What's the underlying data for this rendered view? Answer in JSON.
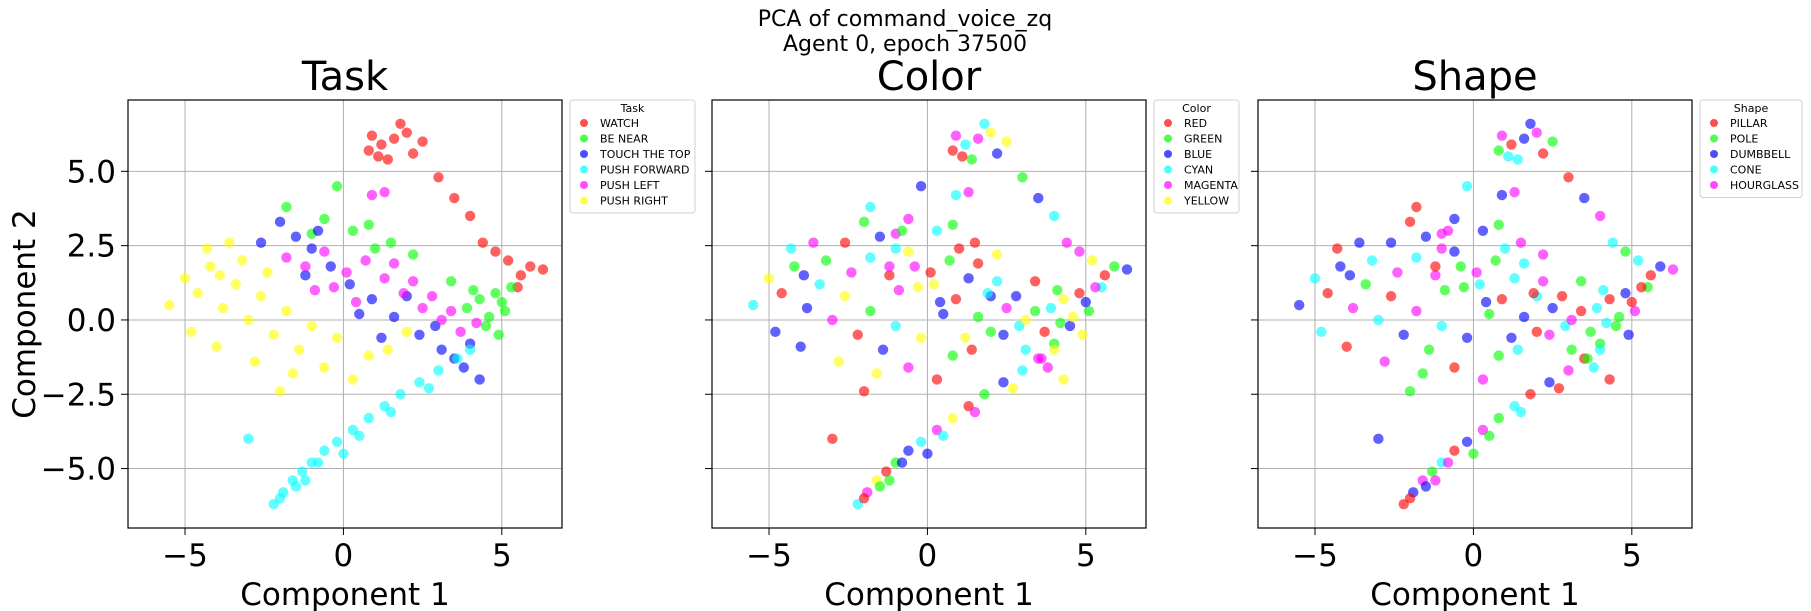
{
  "figure": {
    "title_line1": "PCA of command_voice_zq",
    "title_line2": "Agent 0, epoch 37500"
  },
  "chart_data": [
    {
      "type": "scatter",
      "title": "Task",
      "xlabel": "Component 1",
      "ylabel": "Component 2",
      "xlim": [
        -6.8,
        6.9
      ],
      "ylim": [
        -7.0,
        7.4
      ],
      "xticks": [
        -5,
        0,
        5
      ],
      "yticks": [
        5.0,
        2.5,
        0.0,
        -2.5,
        -5.0
      ],
      "xtick_labels": [
        "−5",
        "0",
        "5"
      ],
      "ytick_labels": [
        "5.0",
        "2.5",
        "0.0",
        "−2.5",
        "−5.0"
      ],
      "grid": true,
      "legend": {
        "title": "Task",
        "placement": "outside upper-right"
      },
      "series": [
        {
          "name": "WATCH",
          "color": "#ff0000",
          "values": [
            [
              1.2,
              5.9
            ],
            [
              1.6,
              6.1
            ],
            [
              2.0,
              6.3
            ],
            [
              0.8,
              5.7
            ],
            [
              1.4,
              5.4
            ],
            [
              2.2,
              5.6
            ],
            [
              1.8,
              6.6
            ],
            [
              0.9,
              6.2
            ],
            [
              2.5,
              6.0
            ],
            [
              1.1,
              5.5
            ],
            [
              3.0,
              4.8
            ],
            [
              3.5,
              4.1
            ],
            [
              4.0,
              3.5
            ],
            [
              4.8,
              2.3
            ],
            [
              5.2,
              2.0
            ],
            [
              5.6,
              1.5
            ],
            [
              5.9,
              1.8
            ],
            [
              6.3,
              1.7
            ],
            [
              5.5,
              1.1
            ],
            [
              4.4,
              2.6
            ]
          ]
        },
        {
          "name": "BE NEAR",
          "color": "#00ff00",
          "values": [
            [
              4.3,
              0.7
            ],
            [
              4.8,
              0.9
            ],
            [
              5.1,
              0.3
            ],
            [
              4.5,
              -0.2
            ],
            [
              3.9,
              0.4
            ],
            [
              5.3,
              1.1
            ],
            [
              4.9,
              -0.5
            ],
            [
              1.5,
              2.6
            ],
            [
              0.8,
              3.2
            ],
            [
              -0.2,
              4.5
            ],
            [
              -1.8,
              3.8
            ],
            [
              -0.6,
              3.4
            ],
            [
              2.2,
              2.2
            ],
            [
              3.4,
              1.3
            ],
            [
              4.1,
              1.0
            ],
            [
              5.0,
              0.6
            ],
            [
              0.3,
              3.0
            ],
            [
              -1.0,
              2.9
            ],
            [
              4.6,
              0.1
            ],
            [
              1.0,
              2.4
            ]
          ]
        },
        {
          "name": "TOUCH THE TOP",
          "color": "#0000ff",
          "values": [
            [
              -2.0,
              3.3
            ],
            [
              -1.5,
              2.8
            ],
            [
              -1.0,
              2.4
            ],
            [
              -0.4,
              1.8
            ],
            [
              0.2,
              1.2
            ],
            [
              0.9,
              0.7
            ],
            [
              1.6,
              0.1
            ],
            [
              2.4,
              -0.5
            ],
            [
              3.1,
              -1.0
            ],
            [
              3.8,
              -1.6
            ],
            [
              4.3,
              -2.0
            ],
            [
              -2.6,
              2.6
            ],
            [
              -0.8,
              3.0
            ],
            [
              0.5,
              0.2
            ],
            [
              2.9,
              -0.2
            ],
            [
              3.5,
              -1.3
            ],
            [
              1.2,
              -0.6
            ],
            [
              -1.2,
              1.5
            ],
            [
              4.0,
              -0.8
            ],
            [
              2.0,
              0.8
            ]
          ]
        },
        {
          "name": "PUSH FORWARD",
          "color": "#00ffff",
          "values": [
            [
              -2.2,
              -6.2
            ],
            [
              -1.9,
              -5.8
            ],
            [
              -1.6,
              -5.4
            ],
            [
              -1.3,
              -5.1
            ],
            [
              -1.0,
              -4.8
            ],
            [
              -0.6,
              -4.4
            ],
            [
              -0.2,
              -4.1
            ],
            [
              0.3,
              -3.7
            ],
            [
              0.8,
              -3.3
            ],
            [
              1.3,
              -2.9
            ],
            [
              1.8,
              -2.5
            ],
            [
              2.4,
              -2.1
            ],
            [
              3.0,
              -1.7
            ],
            [
              3.6,
              -1.3
            ],
            [
              4.0,
              -1.0
            ],
            [
              -2.0,
              -6.0
            ],
            [
              -1.5,
              -5.6
            ],
            [
              -0.8,
              -4.8
            ],
            [
              0.5,
              -3.9
            ],
            [
              1.5,
              -3.1
            ],
            [
              2.7,
              -2.3
            ],
            [
              -3.0,
              -4.0
            ],
            [
              -1.2,
              -5.4
            ],
            [
              0.0,
              -4.5
            ]
          ]
        },
        {
          "name": "PUSH LEFT",
          "color": "#ff00ff",
          "values": [
            [
              -1.8,
              2.1
            ],
            [
              -1.2,
              1.8
            ],
            [
              -0.6,
              2.3
            ],
            [
              0.1,
              1.6
            ],
            [
              0.7,
              2.0
            ],
            [
              1.3,
              1.4
            ],
            [
              1.9,
              0.9
            ],
            [
              2.5,
              0.4
            ],
            [
              3.1,
              0.0
            ],
            [
              3.7,
              -0.4
            ],
            [
              4.2,
              -0.1
            ],
            [
              2.8,
              0.8
            ],
            [
              0.9,
              4.2
            ],
            [
              1.3,
              4.3
            ],
            [
              -0.3,
              1.1
            ],
            [
              1.6,
              1.9
            ],
            [
              3.4,
              0.3
            ],
            [
              0.4,
              0.6
            ],
            [
              2.2,
              1.3
            ],
            [
              -0.9,
              1.0
            ]
          ]
        },
        {
          "name": "PUSH RIGHT",
          "color": "#ffff00",
          "values": [
            [
              -5.0,
              1.4
            ],
            [
              -4.6,
              0.9
            ],
            [
              -4.2,
              1.8
            ],
            [
              -3.8,
              0.4
            ],
            [
              -3.4,
              1.2
            ],
            [
              -3.0,
              0.0
            ],
            [
              -2.6,
              0.8
            ],
            [
              -2.2,
              -0.5
            ],
            [
              -1.8,
              0.3
            ],
            [
              -1.4,
              -1.0
            ],
            [
              -1.0,
              -0.2
            ],
            [
              -0.6,
              -1.6
            ],
            [
              -0.2,
              -0.6
            ],
            [
              0.3,
              -2.0
            ],
            [
              0.8,
              -1.2
            ],
            [
              -4.8,
              -0.4
            ],
            [
              -4.3,
              2.4
            ],
            [
              -3.6,
              2.6
            ],
            [
              -2.8,
              -1.4
            ],
            [
              -2.0,
              -2.4
            ],
            [
              -3.2,
              2.0
            ],
            [
              -4.0,
              -0.9
            ],
            [
              -5.5,
              0.5
            ],
            [
              -2.4,
              1.6
            ],
            [
              -1.6,
              -1.8
            ],
            [
              1.4,
              -1.0
            ],
            [
              2.0,
              -0.4
            ],
            [
              -3.9,
              1.5
            ]
          ]
        }
      ]
    },
    {
      "type": "scatter",
      "title": "Color",
      "xlabel": "Component 1",
      "xlim": [
        -6.8,
        6.9
      ],
      "ylim": [
        -7.0,
        7.4
      ],
      "xticks": [
        -5,
        0,
        5
      ],
      "xtick_labels": [
        "−5",
        "0",
        "5"
      ],
      "grid": true,
      "legend": {
        "title": "Color",
        "placement": "outside upper-right"
      },
      "series": [
        {
          "name": "RED",
          "color": "#ff0000",
          "values": []
        },
        {
          "name": "GREEN",
          "color": "#00ff00",
          "values": []
        },
        {
          "name": "BLUE",
          "color": "#0000ff",
          "values": []
        },
        {
          "name": "CYAN",
          "color": "#00ffff",
          "values": []
        },
        {
          "name": "MAGENTA",
          "color": "#ff00ff",
          "values": []
        },
        {
          "name": "YELLOW",
          "color": "#ffff00",
          "values": []
        }
      ],
      "note_values_mirror_panel": 0
    },
    {
      "type": "scatter",
      "title": "Shape",
      "xlabel": "Component 1",
      "xlim": [
        -6.8,
        6.9
      ],
      "ylim": [
        -7.0,
        7.4
      ],
      "xticks": [
        -5,
        0,
        5
      ],
      "xtick_labels": [
        "−5",
        "0",
        "5"
      ],
      "grid": true,
      "legend": {
        "title": "Shape",
        "placement": "outside upper-right"
      },
      "series": [
        {
          "name": "PILLAR",
          "color": "#ff0000",
          "values": []
        },
        {
          "name": "POLE",
          "color": "#00ff00",
          "values": []
        },
        {
          "name": "DUMBBELL",
          "color": "#0000ff",
          "values": []
        },
        {
          "name": "CONE",
          "color": "#00ffff",
          "values": []
        },
        {
          "name": "HOURGLASS",
          "color": "#ff00ff",
          "values": []
        }
      ],
      "note_values_mirror_panel": 0
    }
  ]
}
